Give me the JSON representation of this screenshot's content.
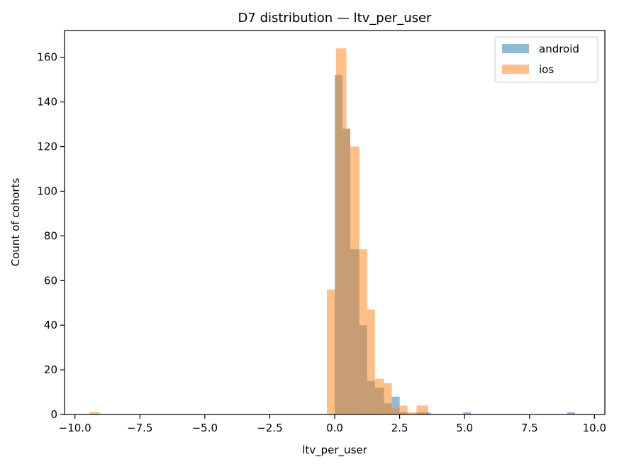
{
  "chart_data": {
    "type": "histogram",
    "title": "D7 distribution — ltv_per_user",
    "xlabel": "ltv_per_user",
    "ylabel": "Count of cohorts",
    "xlim": [
      -10.4,
      10.4
    ],
    "ylim": [
      0,
      172
    ],
    "xticks": [
      -10.0,
      -7.5,
      -5.0,
      -2.5,
      0.0,
      2.5,
      5.0,
      7.5,
      10.0
    ],
    "xtick_labels": [
      "−10.0",
      "−7.5",
      "−5.0",
      "−2.5",
      "0.0",
      "2.5",
      "5.0",
      "7.5",
      "10.0"
    ],
    "yticks": [
      0,
      20,
      40,
      60,
      80,
      100,
      120,
      140,
      160
    ],
    "ytick_labels": [
      "0",
      "20",
      "40",
      "60",
      "80",
      "100",
      "120",
      "140",
      "160"
    ],
    "grid": false,
    "legend_position": "top-right",
    "series": [
      {
        "name": "android",
        "color": "#1f77b4",
        "opacity": 0.5,
        "bins": [
          {
            "x0": 0.0,
            "x1": 0.3,
            "count": 152
          },
          {
            "x0": 0.3,
            "x1": 0.6,
            "count": 128
          },
          {
            "x0": 0.6,
            "x1": 0.95,
            "count": 74
          },
          {
            "x0": 0.95,
            "x1": 1.25,
            "count": 40
          },
          {
            "x0": 1.25,
            "x1": 1.55,
            "count": 15
          },
          {
            "x0": 1.55,
            "x1": 1.9,
            "count": 12
          },
          {
            "x0": 1.9,
            "x1": 2.2,
            "count": 5
          },
          {
            "x0": 2.2,
            "x1": 2.5,
            "count": 8
          },
          {
            "x0": 2.5,
            "x1": 2.8,
            "count": 1
          },
          {
            "x0": 2.8,
            "x1": 3.15,
            "count": 0
          },
          {
            "x0": 3.15,
            "x1": 3.45,
            "count": 1
          },
          {
            "x0": 3.45,
            "x1": 3.7,
            "count": 1
          },
          {
            "x0": 4.95,
            "x1": 5.25,
            "count": 1
          },
          {
            "x0": 8.95,
            "x1": 9.25,
            "count": 1
          }
        ]
      },
      {
        "name": "ios",
        "color": "#ff7f0e",
        "opacity": 0.5,
        "bins": [
          {
            "x0": -9.45,
            "x1": -9.05,
            "count": 1
          },
          {
            "x0": -0.3,
            "x1": 0.05,
            "count": 56
          },
          {
            "x0": 0.05,
            "x1": 0.45,
            "count": 164
          },
          {
            "x0": 0.45,
            "x1": 0.6,
            "count": 128
          },
          {
            "x0": 0.6,
            "x1": 0.95,
            "count": 120
          },
          {
            "x0": 0.95,
            "x1": 1.25,
            "count": 74
          },
          {
            "x0": 1.25,
            "x1": 1.55,
            "count": 47
          },
          {
            "x0": 1.55,
            "x1": 1.9,
            "count": 16
          },
          {
            "x0": 1.9,
            "x1": 2.2,
            "count": 14
          },
          {
            "x0": 2.2,
            "x1": 2.5,
            "count": 3
          },
          {
            "x0": 2.5,
            "x1": 2.8,
            "count": 4
          },
          {
            "x0": 2.8,
            "x1": 3.15,
            "count": 1
          },
          {
            "x0": 3.15,
            "x1": 3.6,
            "count": 4
          }
        ]
      }
    ]
  }
}
